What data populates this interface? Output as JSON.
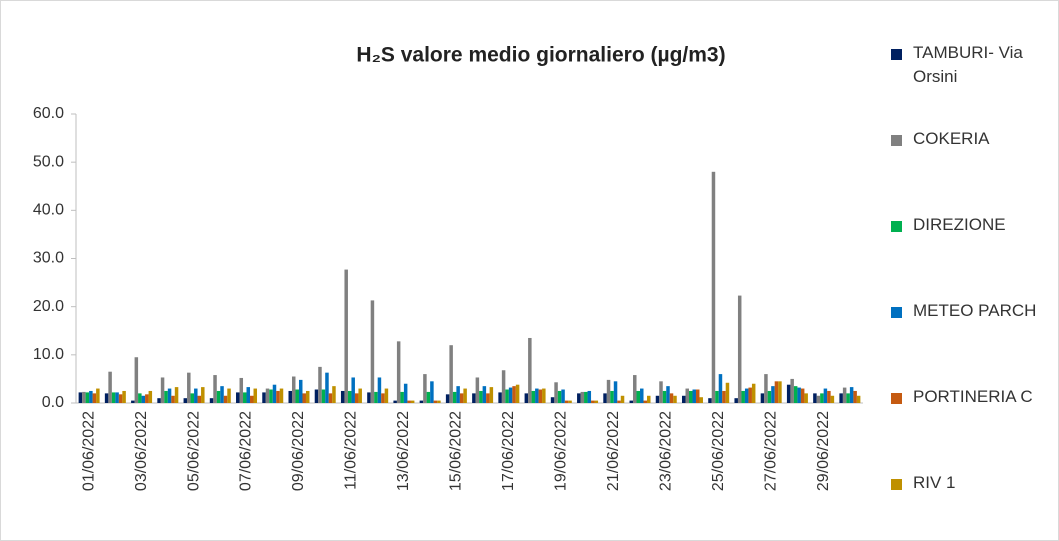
{
  "chart_data": {
    "type": "bar",
    "title": "H₂S valore medio giornaliero (µg/m3)",
    "categories": [
      "01/06/2022",
      null,
      "03/06/2022",
      null,
      "05/06/2022",
      null,
      "07/06/2022",
      null,
      "09/06/2022",
      null,
      "11/06/2022",
      null,
      "13/06/2022",
      null,
      "15/06/2022",
      null,
      "17/06/2022",
      null,
      "19/06/2022",
      null,
      "21/06/2022",
      null,
      "23/06/2022",
      null,
      "25/06/2022",
      null,
      "27/06/2022",
      null,
      "29/06/2022",
      null
    ],
    "series": [
      {
        "name": "TAMBURI- Via Orsini",
        "color": "#002060",
        "values": [
          2.2,
          2.0,
          0.5,
          1.0,
          1.0,
          1.0,
          2.2,
          2.2,
          2.5,
          2.8,
          2.5,
          2.2,
          0.5,
          0.5,
          1.8,
          2.0,
          2.2,
          2.0,
          1.2,
          2.0,
          2.0,
          0.5,
          1.5,
          1.5,
          1.0,
          1.0,
          2.0,
          3.8,
          2.0,
          2.0
        ]
      },
      {
        "name": "COKERIA",
        "color": "#808080",
        "values": [
          2.3,
          6.5,
          9.5,
          5.3,
          6.3,
          5.8,
          5.2,
          3.0,
          5.5,
          7.5,
          27.7,
          21.3,
          12.8,
          6.0,
          12.0,
          5.3,
          6.8,
          13.5,
          4.3,
          2.3,
          4.8,
          5.8,
          4.5,
          3.0,
          48.0,
          22.3,
          6.0,
          5.0,
          1.5,
          3.2
        ]
      },
      {
        "name": "DIREZIONE",
        "color": "#00b050",
        "values": [
          2.2,
          2.2,
          2.0,
          2.5,
          2.0,
          2.5,
          2.2,
          2.8,
          2.8,
          2.8,
          2.5,
          2.3,
          2.3,
          2.3,
          2.3,
          2.5,
          2.8,
          2.5,
          2.5,
          2.3,
          2.5,
          2.5,
          2.5,
          2.5,
          2.5,
          2.5,
          2.5,
          3.5,
          2.0,
          2.0
        ]
      },
      {
        "name": "METEO PARCH",
        "color": "#0070c0",
        "values": [
          2.5,
          2.2,
          1.5,
          3.0,
          3.0,
          3.5,
          3.3,
          3.8,
          4.8,
          6.3,
          5.3,
          5.3,
          4.0,
          4.5,
          3.5,
          3.5,
          3.2,
          3.0,
          2.8,
          2.5,
          4.5,
          3.0,
          3.5,
          2.8,
          6.0,
          3.0,
          3.5,
          3.2,
          3.0,
          3.3
        ]
      },
      {
        "name": "PORTINERIA C",
        "color": "#c55a11",
        "values": [
          2.0,
          1.8,
          1.8,
          1.5,
          1.5,
          1.5,
          1.5,
          2.5,
          2.0,
          2.0,
          2.0,
          2.0,
          0.5,
          0.5,
          2.0,
          2.0,
          3.5,
          2.8,
          0.5,
          0.5,
          0.5,
          0.5,
          2.0,
          2.8,
          2.5,
          3.2,
          4.5,
          3.0,
          2.5,
          2.5
        ]
      },
      {
        "name": "RIV 1",
        "color": "#bf9000",
        "values": [
          3.0,
          2.5,
          2.5,
          3.3,
          3.3,
          3.0,
          3.0,
          3.0,
          2.5,
          3.5,
          3.0,
          3.0,
          0.5,
          0.5,
          3.0,
          3.3,
          3.8,
          3.0,
          0.5,
          0.5,
          1.5,
          1.5,
          1.5,
          1.2,
          4.2,
          4.0,
          4.5,
          2.0,
          1.5,
          1.5
        ]
      }
    ],
    "ylim": [
      0,
      60
    ],
    "yticks": [
      {
        "value": 0,
        "label": "0.0"
      },
      {
        "value": 10,
        "label": "10.0"
      },
      {
        "value": 20,
        "label": "20.0"
      },
      {
        "value": 30,
        "label": "30.0"
      },
      {
        "value": 40,
        "label": "40.0"
      },
      {
        "value": 50,
        "label": "50.0"
      },
      {
        "value": 60,
        "label": "60.0"
      }
    ],
    "grid": false,
    "legend": "right"
  }
}
